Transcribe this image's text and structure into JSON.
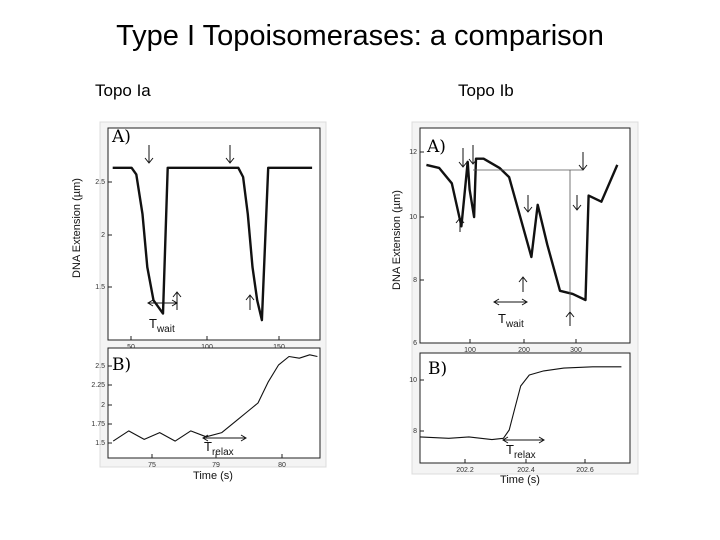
{
  "slide": {
    "title": "Type I Topoisomerases: a comparison",
    "left_heading": "Topo Ia",
    "right_heading": "Topo Ib"
  },
  "chart_data": [
    {
      "id": "ia_A",
      "type": "line",
      "panel_label": "A)",
      "ylabel": "DNA Extension (µm)",
      "xticks": [
        "50",
        "100",
        "150"
      ],
      "yticks": [
        "2.5",
        "2",
        "1.5"
      ],
      "xlim": [
        35,
        170
      ],
      "ylim": [
        1.25,
        2.85
      ],
      "annotation": {
        "main": "T",
        "sub": "wait"
      },
      "series": [
        {
          "x": [
            38,
            50,
            53,
            57,
            60,
            64,
            67,
            70,
            73,
            80,
            90,
            100,
            110,
            118,
            121,
            124,
            127,
            130,
            133,
            137,
            140,
            145,
            155,
            165
          ],
          "y": [
            2.55,
            2.55,
            2.5,
            2.2,
            1.8,
            1.55,
            1.5,
            1.45,
            2.55,
            2.55,
            2.55,
            2.55,
            2.55,
            2.55,
            2.48,
            2.2,
            1.8,
            1.55,
            1.4,
            2.55,
            2.55,
            2.55,
            2.55,
            2.55
          ]
        }
      ]
    },
    {
      "id": "ia_B",
      "type": "line",
      "panel_label": "B)",
      "xlabel": "Time (s)",
      "xticks": [
        "75",
        "79",
        "80"
      ],
      "yticks": [
        "2.5",
        "2.25",
        "2",
        "1.75",
        "1.5"
      ],
      "xlim": [
        73,
        81.2
      ],
      "ylim": [
        1.4,
        2.7
      ],
      "annotation": {
        "main": "T",
        "sub": "relax"
      },
      "series": [
        {
          "x": [
            73.2,
            73.8,
            74.4,
            75,
            75.6,
            76.2,
            76.8,
            77.4,
            78,
            78.4,
            78.8,
            79.2,
            79.6,
            80,
            80.4,
            80.8,
            81.1
          ],
          "y": [
            1.6,
            1.72,
            1.62,
            1.7,
            1.6,
            1.72,
            1.65,
            1.7,
            1.85,
            1.95,
            2.05,
            2.3,
            2.5,
            2.6,
            2.58,
            2.62,
            2.6
          ]
        }
      ]
    },
    {
      "id": "ib_A",
      "type": "line",
      "panel_label": "A)",
      "ylabel": "DNA Extension (µm)",
      "xticks": [
        "100",
        "200",
        "300"
      ],
      "yticks": [
        "12",
        "10",
        "8",
        "6"
      ],
      "xlim": [
        40,
        370
      ],
      "ylim": [
        5.6,
        12.6
      ],
      "annotation": {
        "main": "T",
        "sub": "wait"
      },
      "series": [
        {
          "x": [
            50,
            70,
            90,
            105,
            115,
            118,
            125,
            128,
            140,
            165,
            180,
            215,
            225,
            240,
            260,
            280,
            300,
            305,
            325,
            350
          ],
          "y": [
            11.4,
            11.3,
            10.8,
            9.4,
            11.5,
            10.6,
            9.7,
            11.6,
            11.6,
            11.3,
            11.0,
            8.4,
            10.1,
            8.8,
            7.3,
            7.2,
            7.0,
            10.4,
            10.2,
            11.4
          ]
        }
      ]
    },
    {
      "id": "ib_B",
      "type": "line",
      "panel_label": "B)",
      "xlabel": "Time (s)",
      "xticks": [
        "202.2",
        "202.4",
        "202.6"
      ],
      "yticks": [
        "10",
        "8"
      ],
      "xlim": [
        202.05,
        202.78
      ],
      "ylim": [
        7.0,
        11.0
      ],
      "annotation": {
        "main": "T",
        "sub": "relax"
      },
      "series": [
        {
          "x": [
            202.05,
            202.15,
            202.22,
            202.3,
            202.34,
            202.36,
            202.38,
            202.4,
            202.43,
            202.48,
            202.55,
            202.65,
            202.75
          ],
          "y": [
            7.95,
            7.9,
            7.95,
            7.85,
            7.9,
            8.2,
            9.0,
            9.8,
            10.2,
            10.35,
            10.45,
            10.5,
            10.5
          ]
        }
      ]
    }
  ]
}
